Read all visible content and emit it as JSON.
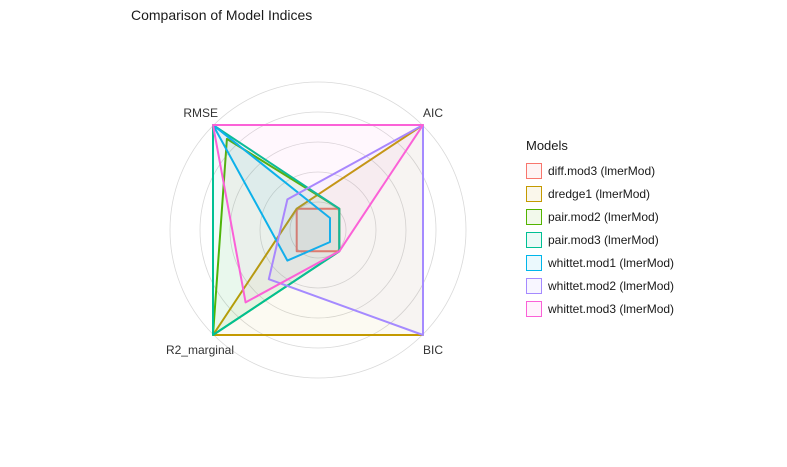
{
  "chart_data": {
    "type": "radar",
    "title": "Comparison of Model Indices",
    "axes": [
      "AIC",
      "BIC",
      "R2_marginal",
      "RMSE"
    ],
    "legend_title": "Models",
    "legend_position": "right",
    "grid": true,
    "range": [
      0,
      1
    ],
    "series": [
      {
        "name": "diff.mod3 (lmerMod)",
        "color": "#F8766D",
        "values": [
          0.1,
          0.1,
          0.1,
          0.1
        ]
      },
      {
        "name": "dredge1 (lmerMod)",
        "color": "#C49A00",
        "values": [
          1.0,
          1.0,
          1.0,
          0.1
        ]
      },
      {
        "name": "pair.mod2 (lmerMod)",
        "color": "#53B400",
        "values": [
          0.1,
          0.1,
          1.0,
          0.85
        ]
      },
      {
        "name": "pair.mod3 (lmerMod)",
        "color": "#00C094",
        "values": [
          0.1,
          0.1,
          1.0,
          1.0
        ]
      },
      {
        "name": "whittet.mod1 (lmerMod)",
        "color": "#00B6EB",
        "values": [
          0.0,
          0.0,
          0.2,
          1.0
        ]
      },
      {
        "name": "whittet.mod2 (lmerMod)",
        "color": "#A58AFF",
        "values": [
          1.0,
          1.0,
          0.4,
          0.2
        ]
      },
      {
        "name": "whittet.mod3 (lmerMod)",
        "color": "#FB61D7",
        "values": [
          1.0,
          0.1,
          0.65,
          1.0
        ]
      }
    ]
  }
}
